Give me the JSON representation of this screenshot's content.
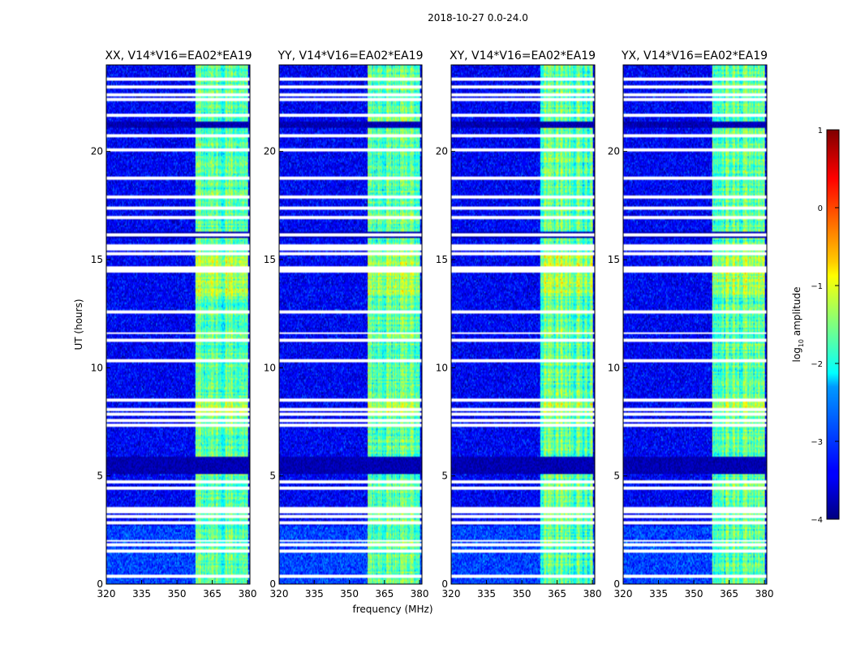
{
  "figure": {
    "suptitle": "2018-10-27 0.0-24.0",
    "xlabel": "frequency (MHz)",
    "ylabel": "UT (hours)",
    "colorbar_label": "log",
    "colorbar_label_sub": "10",
    "colorbar_label_suffix": " amplitude"
  },
  "chart_data": {
    "type": "heatmap",
    "colormap": "jet",
    "x_range": [
      320,
      381
    ],
    "y_range": [
      0,
      24
    ],
    "x_ticks": [
      "320",
      "335",
      "350",
      "365",
      "380"
    ],
    "x_tick_values": [
      320,
      335,
      350,
      365,
      380
    ],
    "y_ticks": [
      "0",
      "5",
      "10",
      "15",
      "20"
    ],
    "y_tick_values": [
      0,
      5,
      10,
      15,
      20
    ],
    "color_range": [
      -4,
      1
    ],
    "colorbar_ticks": [
      "1",
      "0",
      "−1",
      "−2",
      "−3",
      "−4"
    ],
    "colorbar_tick_values": [
      1,
      0,
      -1,
      -2,
      -3,
      -4
    ],
    "background_level": -3.4,
    "rfi_band_mhz": [
      358,
      380
    ],
    "rfi_level": -1.7,
    "flagged_rows_ut": [
      0.35,
      1.5,
      1.8,
      2.0,
      2.85,
      3.15,
      3.35,
      3.5,
      4.45,
      4.7,
      7.35,
      7.55,
      7.85,
      8.1,
      8.5,
      10.3,
      11.3,
      11.6,
      12.55,
      14.45,
      14.65,
      15.3,
      15.5,
      15.65,
      16.15,
      16.95,
      17.35,
      17.9,
      18.75,
      20.1,
      20.75,
      21.7,
      22.4,
      22.65,
      23.0,
      23.35
    ],
    "dark_rows_ut": [
      [
        5.1,
        5.9
      ],
      [
        16.0,
        16.3
      ],
      [
        21.1,
        21.4
      ]
    ],
    "panels": [
      {
        "title": "XX, V14*V16=EA02*EA19"
      },
      {
        "title": "YY, V14*V16=EA02*EA19"
      },
      {
        "title": "XY, V14*V16=EA02*EA19"
      },
      {
        "title": "YX, V14*V16=EA02*EA19"
      }
    ]
  }
}
